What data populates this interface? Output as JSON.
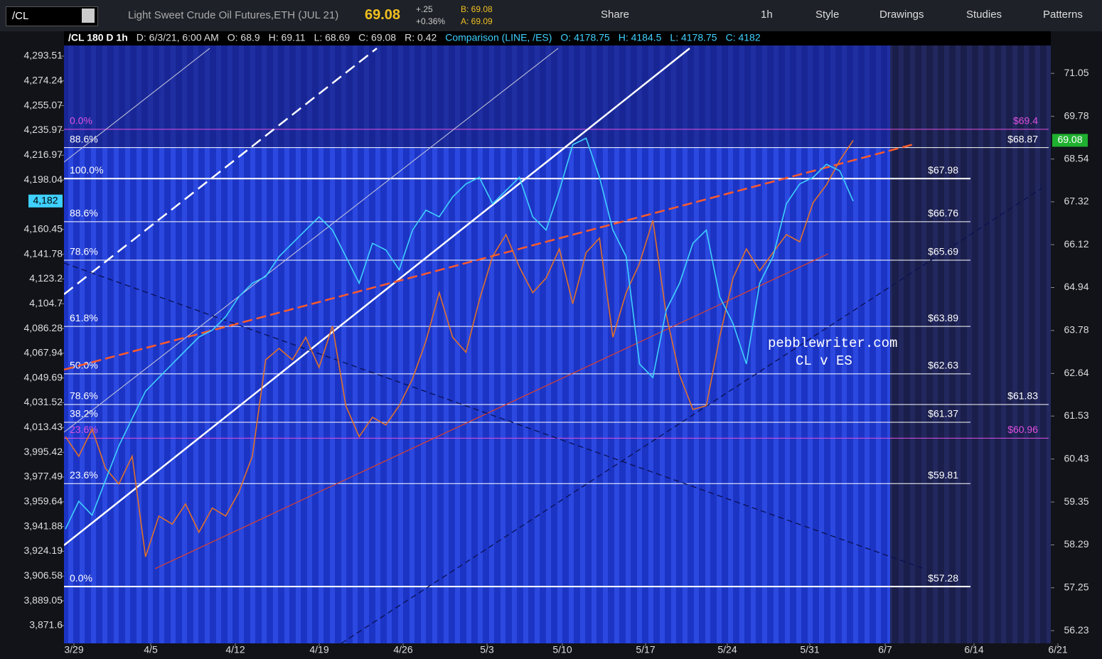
{
  "toolbar": {
    "symbol": "/CL",
    "description": "Light Sweet Crude Oil Futures,ETH (JUL 21)",
    "last": "69.08",
    "change": "+.25",
    "change_pct": "+0.36%",
    "bid": "B: 69.08",
    "ask": "A: 69.09",
    "buttons": [
      "Share",
      "1h",
      "Style",
      "Drawings",
      "Studies",
      "Patterns"
    ]
  },
  "header": {
    "study": "/CL 180 D 1h",
    "items": [
      "D: 6/3/21, 6:00 AM",
      "O: 68.9",
      "H: 69.11",
      "L: 68.69",
      "C: 69.08",
      "R: 0.42"
    ],
    "comparison": "Comparison (LINE, /ES)",
    "comparison_items": [
      "O: 4178.75",
      "H: 4184.5",
      "L: 4178.75",
      "C: 4182"
    ]
  },
  "chart_data": {
    "type": "line",
    "log_scale": true,
    "xticks": [
      "3/29",
      "4/5",
      "4/12",
      "4/19",
      "4/26",
      "5/3",
      "5/10",
      "5/17",
      "5/24",
      "5/31",
      "6/7",
      "6/14",
      "6/21"
    ],
    "ylim": [
      55.93,
      71.8
    ],
    "yticks": [
      71.05,
      69.78,
      68.54,
      67.32,
      66.12,
      64.94,
      63.78,
      62.64,
      61.53,
      60.43,
      59.35,
      58.29,
      57.25,
      56.23
    ],
    "y2lim": [
      3859.1,
      4299.6
    ],
    "y2ticks": [
      {
        "value": 4293.51,
        "label": "4,293.51"
      },
      {
        "value": 4274.24,
        "label": "4,274.24"
      },
      {
        "value": 4255.07,
        "label": "4,255.07"
      },
      {
        "value": 4235.97,
        "label": "4,235.97"
      },
      {
        "value": 4216.97,
        "label": "4,216.97"
      },
      {
        "value": 4198.04,
        "label": "4,198.04"
      },
      {
        "value": 4160.45,
        "label": "4,160.45"
      },
      {
        "value": 4141.78,
        "label": "4,141.78"
      },
      {
        "value": 4123.2,
        "label": "4,123.2"
      },
      {
        "value": 4104.7,
        "label": "4,104.7"
      },
      {
        "value": 4086.28,
        "label": "4,086.28"
      },
      {
        "value": 4067.94,
        "label": "4,067.94"
      },
      {
        "value": 4049.69,
        "label": "4,049.69"
      },
      {
        "value": 4031.52,
        "label": "4,031.52"
      },
      {
        "value": 4013.43,
        "label": "4,013.43"
      },
      {
        "value": 3995.42,
        "label": "3,995.42"
      },
      {
        "value": 3977.49,
        "label": "3,977.49"
      },
      {
        "value": 3959.64,
        "label": "3,959.64"
      },
      {
        "value": 3941.88,
        "label": "3,941.88"
      },
      {
        "value": 3924.19,
        "label": "3,924.19"
      },
      {
        "value": 3906.58,
        "label": "3,906.58"
      },
      {
        "value": 3889.05,
        "label": "3,889.05"
      },
      {
        "value": 3871.6,
        "label": "3,871.6"
      }
    ],
    "series": [
      {
        "name": "/CL",
        "color": "#e0702a",
        "values": [
          61.0,
          60.5,
          61.2,
          60.2,
          59.8,
          60.5,
          58.0,
          59.0,
          58.8,
          59.3,
          58.6,
          59.2,
          59.0,
          59.6,
          60.5,
          63.0,
          63.3,
          63.0,
          63.6,
          62.8,
          63.9,
          61.8,
          61.0,
          61.5,
          61.3,
          61.8,
          62.5,
          63.5,
          64.8,
          63.6,
          63.2,
          64.6,
          65.8,
          66.4,
          65.5,
          64.8,
          65.2,
          66.0,
          64.5,
          65.9,
          66.3,
          63.6,
          64.8,
          65.6,
          66.8,
          64.2,
          62.6,
          61.7,
          61.8,
          63.6,
          65.2,
          66.0,
          65.4,
          65.9,
          66.4,
          66.2,
          67.3,
          67.8,
          68.5,
          69.08
        ]
      },
      {
        "name": "/ES",
        "color": "#3fd0ff",
        "axis": "y2",
        "values": [
          3940,
          3960,
          3950,
          3975,
          4000,
          4020,
          4040,
          4050,
          4060,
          4070,
          4080,
          4085,
          4095,
          4110,
          4120,
          4125,
          4140,
          4150,
          4160,
          4170,
          4160,
          4140,
          4120,
          4150,
          4145,
          4130,
          4160,
          4175,
          4170,
          4185,
          4195,
          4200,
          4180,
          4190,
          4200,
          4170,
          4160,
          4190,
          4225,
          4230,
          4200,
          4160,
          4140,
          4060,
          4050,
          4100,
          4120,
          4150,
          4160,
          4110,
          4090,
          4060,
          4120,
          4140,
          4180,
          4195,
          4200,
          4210,
          4205,
          4182
        ]
      }
    ],
    "levels": [
      {
        "value": 69.4,
        "pct": "0.0%",
        "label": "$69.4",
        "color": "#e050e0"
      },
      {
        "value": 68.87,
        "pct": "88.6%",
        "label": "$68.87",
        "color": "#ffffff"
      },
      {
        "value": 67.98,
        "pct": "100.0%",
        "label": "$67.98",
        "color": "#ffffff"
      },
      {
        "value": 66.76,
        "pct": "88.6%",
        "label": "$66.76",
        "color": "#ffffff"
      },
      {
        "value": 65.69,
        "pct": "78.6%",
        "label": "$65.69",
        "color": "#ffffff"
      },
      {
        "value": 63.89,
        "pct": "61.8%",
        "label": "$63.89",
        "color": "#ffffff"
      },
      {
        "value": 62.63,
        "pct": "50.0%",
        "label": "$62.63",
        "color": "#ffffff"
      },
      {
        "value": 61.83,
        "pct": "78.6%",
        "label": "$61.83",
        "color": "#ffffff"
      },
      {
        "value": 61.37,
        "pct": "38.2%",
        "label": "$61.37",
        "color": "#ffffff"
      },
      {
        "value": 60.96,
        "pct": "23.6%",
        "label": "$60.96",
        "color": "#e050e0"
      },
      {
        "value": 59.81,
        "pct": "23.6%",
        "label": "$59.81",
        "color": "#ffffff"
      },
      {
        "value": 57.28,
        "pct": "0.0%",
        "label": "$57.28",
        "color": "#ffffff"
      }
    ],
    "last_price": 69.08,
    "comparison_price": {
      "value": 4182,
      "label": "4,182"
    },
    "annotations": [
      "pebblewriter.com",
      "CL v ES"
    ]
  }
}
